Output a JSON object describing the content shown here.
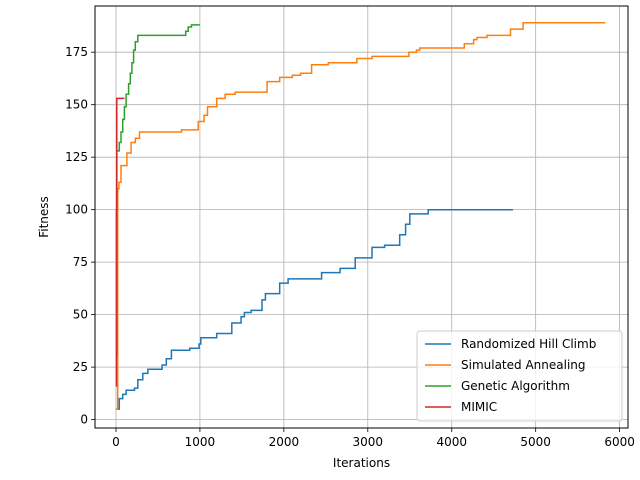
{
  "chart_data": {
    "type": "line",
    "title": "",
    "xlabel": "Iterations",
    "ylabel": "Fitness",
    "xlim": [
      -250,
      6100
    ],
    "ylim": [
      -4,
      197
    ],
    "xticks": [
      0,
      1000,
      2000,
      3000,
      4000,
      5000,
      6000
    ],
    "yticks": [
      0,
      25,
      50,
      75,
      100,
      125,
      150,
      175
    ],
    "grid": true,
    "legend_position": "lower-right",
    "step": true,
    "series": [
      {
        "name": "Randomized Hill Climb",
        "color": "#1f77b4",
        "points": [
          [
            0,
            5
          ],
          [
            40,
            10
          ],
          [
            80,
            12
          ],
          [
            120,
            14
          ],
          [
            220,
            15
          ],
          [
            260,
            19
          ],
          [
            320,
            22
          ],
          [
            380,
            24
          ],
          [
            550,
            26
          ],
          [
            600,
            29
          ],
          [
            660,
            33
          ],
          [
            880,
            34
          ],
          [
            990,
            36
          ],
          [
            1010,
            39
          ],
          [
            1200,
            41
          ],
          [
            1380,
            46
          ],
          [
            1490,
            49
          ],
          [
            1530,
            51
          ],
          [
            1610,
            52
          ],
          [
            1740,
            57
          ],
          [
            1780,
            60
          ],
          [
            1950,
            65
          ],
          [
            2050,
            67
          ],
          [
            2450,
            70
          ],
          [
            2670,
            72
          ],
          [
            2850,
            77
          ],
          [
            3050,
            82
          ],
          [
            3200,
            83
          ],
          [
            3380,
            88
          ],
          [
            3450,
            93
          ],
          [
            3500,
            98
          ],
          [
            3720,
            100
          ],
          [
            4730,
            100
          ]
        ]
      },
      {
        "name": "Simulated Annealing",
        "color": "#ff7f0e",
        "points": [
          [
            0,
            5
          ],
          [
            20,
            110
          ],
          [
            35,
            113
          ],
          [
            60,
            121
          ],
          [
            130,
            127
          ],
          [
            180,
            132
          ],
          [
            230,
            134
          ],
          [
            280,
            137
          ],
          [
            780,
            138
          ],
          [
            980,
            142
          ],
          [
            1050,
            145
          ],
          [
            1090,
            149
          ],
          [
            1200,
            153
          ],
          [
            1300,
            155
          ],
          [
            1420,
            156
          ],
          [
            1800,
            161
          ],
          [
            1950,
            163
          ],
          [
            2100,
            164
          ],
          [
            2200,
            165
          ],
          [
            2330,
            169
          ],
          [
            2530,
            170
          ],
          [
            2870,
            172
          ],
          [
            3050,
            173
          ],
          [
            3490,
            175
          ],
          [
            3580,
            176
          ],
          [
            3620,
            177
          ],
          [
            4150,
            179
          ],
          [
            4260,
            181
          ],
          [
            4300,
            182
          ],
          [
            4420,
            183
          ],
          [
            4700,
            186
          ],
          [
            4850,
            189
          ],
          [
            5830,
            189
          ]
        ]
      },
      {
        "name": "Genetic Algorithm",
        "color": "#2ca02c",
        "points": [
          [
            0,
            30
          ],
          [
            10,
            128
          ],
          [
            40,
            132
          ],
          [
            60,
            137
          ],
          [
            80,
            143
          ],
          [
            100,
            149
          ],
          [
            120,
            155
          ],
          [
            150,
            160
          ],
          [
            170,
            165
          ],
          [
            190,
            170
          ],
          [
            210,
            176
          ],
          [
            230,
            180
          ],
          [
            260,
            183
          ],
          [
            830,
            185
          ],
          [
            860,
            187
          ],
          [
            900,
            188
          ],
          [
            1000,
            188
          ]
        ]
      },
      {
        "name": "MIMIC",
        "color": "#d62728",
        "points": [
          [
            0,
            16
          ],
          [
            5,
            100
          ],
          [
            10,
            153
          ],
          [
            100,
            153
          ]
        ]
      }
    ]
  }
}
